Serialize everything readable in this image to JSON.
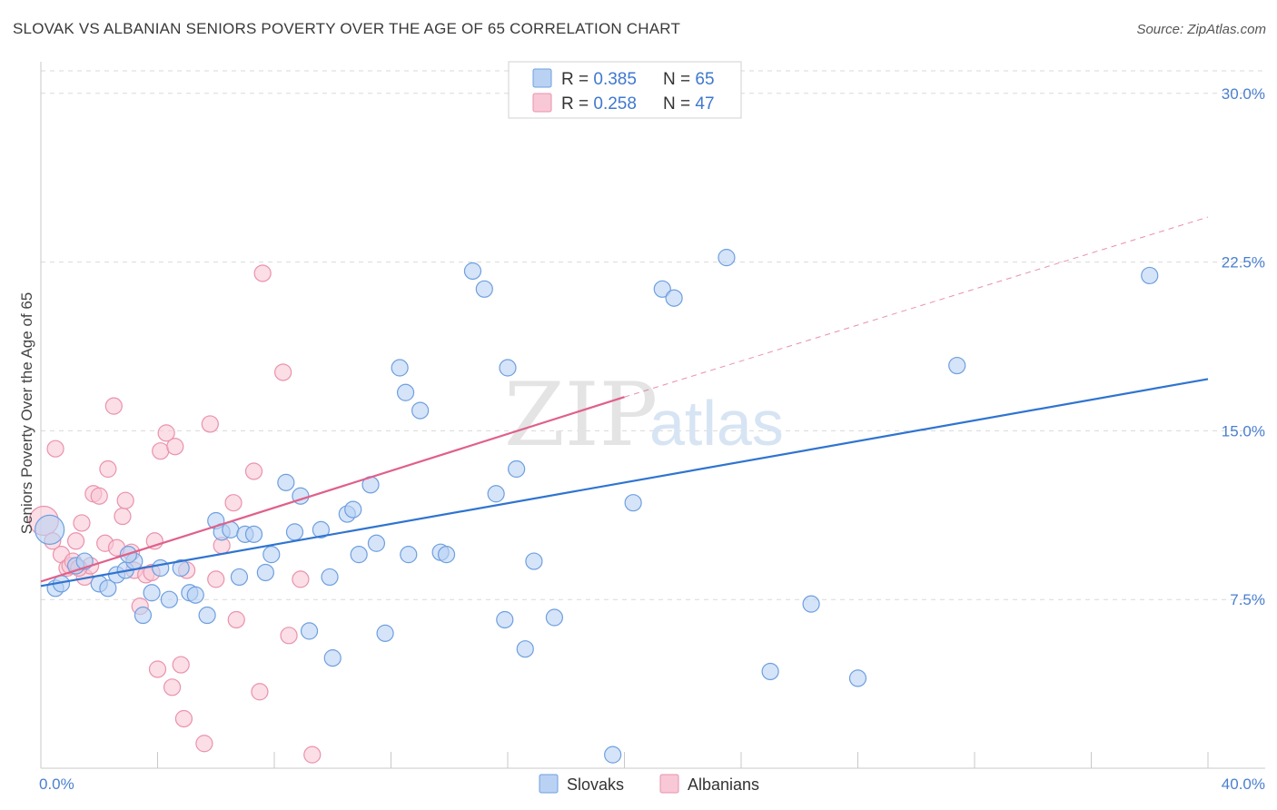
{
  "header": {
    "title": "SLOVAK VS ALBANIAN SENIORS POVERTY OVER THE AGE OF 65 CORRELATION CHART",
    "source": "Source: ZipAtlas.com"
  },
  "watermark": {
    "zip": "ZIP",
    "atlas": "atlas"
  },
  "colors": {
    "slovaks_fill": "#b9d2f3",
    "slovaks_stroke": "#6e9fdf",
    "slovaks_line": "#2f74d0",
    "albanians_fill": "#f8c8d6",
    "albanians_stroke": "#ea92ad",
    "albanians_line": "#e0608a",
    "tick": "#4a7fd0",
    "grid": "#d9d9d9"
  },
  "legend": {
    "rows": [
      {
        "r_label": "R = ",
        "r_value": "0.385",
        "n_label": "N = ",
        "n_value": "65"
      },
      {
        "r_label": "R = ",
        "r_value": "0.258",
        "n_label": "N = ",
        "n_value": "47"
      }
    ]
  },
  "chart_data": {
    "type": "scatter",
    "title": "SLOVAK VS ALBANIAN SENIORS POVERTY OVER THE AGE OF 65 CORRELATION CHART",
    "xlabel": "",
    "ylabel": "Seniors Poverty Over the Age of 65",
    "xlim": [
      0,
      40
    ],
    "ylim": [
      0,
      31
    ],
    "x_tick_labels": [
      "0.0%",
      "40.0%"
    ],
    "y_ticks": [
      7.5,
      15.0,
      22.5,
      30.0
    ],
    "y_tick_labels": [
      "7.5%",
      "15.0%",
      "22.5%",
      "30.0%"
    ],
    "grid": true,
    "legend_position": "top-center",
    "series": [
      {
        "name": "Slovaks",
        "r": 0.385,
        "n": 65,
        "trend": {
          "x": [
            0,
            40
          ],
          "y": [
            8.1,
            17.3
          ]
        },
        "points": [
          [
            0.3,
            10.6
          ],
          [
            0.5,
            8.0
          ],
          [
            0.7,
            8.2
          ],
          [
            1.2,
            9.0
          ],
          [
            1.5,
            9.2
          ],
          [
            2.0,
            8.2
          ],
          [
            2.3,
            8.0
          ],
          [
            2.6,
            8.6
          ],
          [
            2.9,
            8.8
          ],
          [
            3.2,
            9.2
          ],
          [
            3.5,
            6.8
          ],
          [
            3.8,
            7.8
          ],
          [
            4.1,
            8.9
          ],
          [
            4.4,
            7.5
          ],
          [
            4.8,
            8.9
          ],
          [
            5.1,
            7.8
          ],
          [
            5.3,
            7.7
          ],
          [
            5.7,
            6.8
          ],
          [
            6.0,
            11.0
          ],
          [
            6.2,
            10.5
          ],
          [
            6.5,
            10.6
          ],
          [
            6.8,
            8.5
          ],
          [
            7.0,
            10.4
          ],
          [
            7.3,
            10.4
          ],
          [
            7.7,
            8.7
          ],
          [
            7.9,
            9.5
          ],
          [
            8.4,
            12.7
          ],
          [
            8.7,
            10.5
          ],
          [
            8.9,
            12.1
          ],
          [
            9.2,
            6.1
          ],
          [
            9.6,
            10.6
          ],
          [
            9.9,
            8.5
          ],
          [
            10.0,
            4.9
          ],
          [
            10.5,
            11.3
          ],
          [
            10.7,
            11.5
          ],
          [
            10.9,
            9.5
          ],
          [
            11.3,
            12.6
          ],
          [
            11.5,
            10.0
          ],
          [
            11.8,
            6.0
          ],
          [
            12.3,
            17.8
          ],
          [
            12.5,
            16.7
          ],
          [
            12.6,
            9.5
          ],
          [
            13.0,
            15.9
          ],
          [
            13.7,
            9.6
          ],
          [
            13.9,
            9.5
          ],
          [
            14.8,
            22.1
          ],
          [
            15.2,
            21.3
          ],
          [
            15.6,
            12.2
          ],
          [
            15.9,
            6.6
          ],
          [
            16.0,
            17.8
          ],
          [
            16.3,
            13.3
          ],
          [
            16.6,
            5.3
          ],
          [
            16.9,
            9.2
          ],
          [
            17.6,
            6.7
          ],
          [
            19.6,
            0.6
          ],
          [
            20.3,
            11.8
          ],
          [
            21.3,
            21.3
          ],
          [
            21.7,
            20.9
          ],
          [
            23.5,
            22.7
          ],
          [
            25.0,
            4.3
          ],
          [
            26.4,
            7.3
          ],
          [
            28.0,
            4.0
          ],
          [
            31.4,
            17.9
          ],
          [
            38.0,
            21.9
          ],
          [
            3.0,
            9.5
          ]
        ]
      },
      {
        "name": "Albanians",
        "r": 0.258,
        "n": 47,
        "trend": {
          "x": [
            0,
            20
          ],
          "y": [
            8.3,
            16.5
          ]
        },
        "trend_extension": {
          "x": [
            20,
            40
          ],
          "y": [
            16.5,
            24.5
          ]
        },
        "points": [
          [
            0.1,
            11.0
          ],
          [
            0.4,
            10.1
          ],
          [
            0.5,
            14.2
          ],
          [
            0.7,
            9.5
          ],
          [
            0.9,
            8.9
          ],
          [
            1.0,
            9.0
          ],
          [
            1.1,
            9.2
          ],
          [
            1.2,
            10.1
          ],
          [
            1.4,
            10.9
          ],
          [
            1.5,
            8.5
          ],
          [
            1.7,
            9.0
          ],
          [
            1.8,
            12.2
          ],
          [
            2.0,
            12.1
          ],
          [
            2.2,
            10.0
          ],
          [
            2.3,
            13.3
          ],
          [
            2.5,
            16.1
          ],
          [
            2.6,
            9.8
          ],
          [
            2.8,
            11.2
          ],
          [
            2.9,
            11.9
          ],
          [
            3.1,
            9.6
          ],
          [
            3.2,
            8.8
          ],
          [
            3.4,
            7.2
          ],
          [
            3.6,
            8.6
          ],
          [
            3.8,
            8.7
          ],
          [
            3.9,
            10.1
          ],
          [
            4.0,
            4.4
          ],
          [
            4.1,
            14.1
          ],
          [
            4.3,
            14.9
          ],
          [
            4.5,
            3.6
          ],
          [
            4.6,
            14.3
          ],
          [
            4.8,
            4.6
          ],
          [
            4.9,
            2.2
          ],
          [
            5.0,
            8.8
          ],
          [
            5.6,
            1.1
          ],
          [
            5.8,
            15.3
          ],
          [
            6.0,
            8.4
          ],
          [
            6.2,
            9.9
          ],
          [
            6.6,
            11.8
          ],
          [
            6.7,
            6.6
          ],
          [
            7.3,
            13.2
          ],
          [
            7.5,
            3.4
          ],
          [
            7.6,
            22.0
          ],
          [
            8.3,
            17.6
          ],
          [
            8.5,
            5.9
          ],
          [
            8.9,
            8.4
          ],
          [
            9.3,
            0.6
          ],
          [
            1.3,
            8.9
          ]
        ]
      }
    ]
  },
  "bottom_legend": {
    "items": [
      "Slovaks",
      "Albanians"
    ]
  }
}
